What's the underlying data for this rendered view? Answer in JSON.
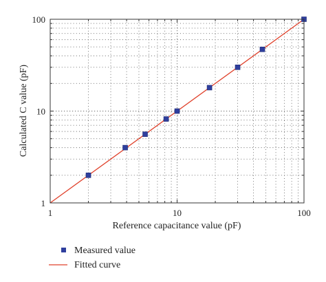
{
  "chart_data": {
    "type": "scatter",
    "title": "",
    "xlabel": "Reference capacitance value (pF)",
    "ylabel": "Calculated C value (pF)",
    "xscale": "log",
    "yscale": "log",
    "xlim": [
      1,
      100
    ],
    "ylim": [
      1,
      100
    ],
    "x_tick_labels": [
      "1",
      "10",
      "100"
    ],
    "y_tick_labels": [
      "1",
      "10",
      "100"
    ],
    "grid": "dotted, major and minor",
    "legend_position": "bottom-left, below the plot",
    "series": [
      {
        "name": "Measured value",
        "kind": "markers",
        "marker": "square",
        "color": "#2f3f9e",
        "x": [
          2,
          3.9,
          5.6,
          8.2,
          10,
          18,
          30,
          47,
          100
        ],
        "y": [
          2,
          4,
          5.6,
          8.2,
          10,
          18,
          30,
          47,
          100
        ]
      },
      {
        "name": "Fitted curve",
        "kind": "line",
        "color": "#e0402a",
        "x": [
          1,
          100
        ],
        "y": [
          1,
          100
        ]
      }
    ]
  }
}
